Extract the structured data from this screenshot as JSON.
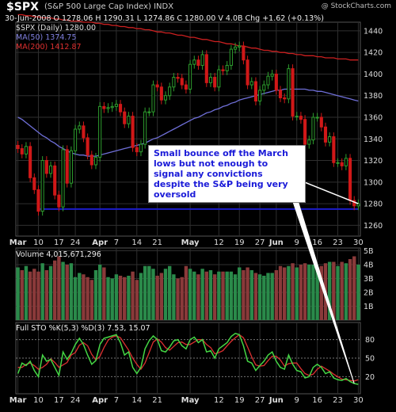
{
  "header": {
    "ticker": "$SPX",
    "subtitle": "(S&P 500 Large Cap Index)  INDX",
    "watermark": "@ StockCharts.com",
    "quote": "30-Jun-2008   O 1278.06  H 1290.31  L 1274.86  C 1280.00  V 4.0B  Chg +1.62 (+0.13%)"
  },
  "legend": {
    "price_series": "$SPX (Daily) 1280.00",
    "ma50": "MA(50) 1374.75",
    "ma200": "MA(200) 1412.87",
    "volume": "Volume 4,015,671,296",
    "sto": "Full STO %K(5,3) %D(3) 7.53, 15.07"
  },
  "annotation": "Small bounce off the March lows but not enough to signal any convictions despite the S&P being very oversold",
  "colors": {
    "background": "#000000",
    "up": "#2e9e2e",
    "down": "#d01818",
    "ma50": "#6f6fd8",
    "ma200": "#cc2020",
    "support": "#1c1cc8",
    "vol_up": "#2a8a4a",
    "vol_down": "#8a3a3a",
    "sto_k": "#44d644",
    "sto_d": "#dd3030",
    "grid": "#2f2f2f"
  },
  "chart_data": {
    "type": "candlestick",
    "dates": [
      "Mar 3",
      "Mar 4",
      "Mar 5",
      "Mar 6",
      "Mar 7",
      "Mar 10",
      "Mar 11",
      "Mar 12",
      "Mar 13",
      "Mar 14",
      "Mar 17",
      "Mar 18",
      "Mar 19",
      "Mar 20",
      "Mar 24",
      "Mar 25",
      "Mar 26",
      "Mar 27",
      "Mar 28",
      "Mar 31",
      "Apr 1",
      "Apr 2",
      "Apr 3",
      "Apr 4",
      "Apr 7",
      "Apr 8",
      "Apr 9",
      "Apr 10",
      "Apr 11",
      "Apr 14",
      "Apr 15",
      "Apr 16",
      "Apr 17",
      "Apr 18",
      "Apr 21",
      "Apr 22",
      "Apr 23",
      "Apr 24",
      "Apr 25",
      "Apr 28",
      "Apr 29",
      "Apr 30",
      "May 1",
      "May 2",
      "May 5",
      "May 6",
      "May 7",
      "May 8",
      "May 9",
      "May 12",
      "May 13",
      "May 14",
      "May 15",
      "May 16",
      "May 19",
      "May 20",
      "May 21",
      "May 22",
      "May 23",
      "May 27",
      "May 28",
      "May 29",
      "May 30",
      "Jun 2",
      "Jun 3",
      "Jun 4",
      "Jun 5",
      "Jun 6",
      "Jun 9",
      "Jun 10",
      "Jun 11",
      "Jun 12",
      "Jun 13",
      "Jun 16",
      "Jun 17",
      "Jun 18",
      "Jun 19",
      "Jun 20",
      "Jun 23",
      "Jun 24",
      "Jun 25",
      "Jun 26",
      "Jun 27",
      "Jun 30"
    ],
    "close": [
      1331,
      1326,
      1333,
      1304,
      1293,
      1273,
      1320,
      1308,
      1315,
      1288,
      1277,
      1330,
      1299,
      1329,
      1349,
      1352,
      1341,
      1325,
      1316,
      1323,
      1370,
      1368,
      1369,
      1370,
      1372,
      1365,
      1354,
      1361,
      1332,
      1328,
      1335,
      1365,
      1365,
      1390,
      1388,
      1376,
      1380,
      1388,
      1397,
      1396,
      1390,
      1386,
      1409,
      1413,
      1408,
      1418,
      1392,
      1397,
      1388,
      1404,
      1403,
      1408,
      1423,
      1425,
      1426,
      1413,
      1390,
      1393,
      1375,
      1385,
      1390,
      1398,
      1400,
      1385,
      1378,
      1377,
      1405,
      1361,
      1361,
      1358,
      1335,
      1339,
      1360,
      1360,
      1351,
      1337,
      1342,
      1318,
      1318,
      1315,
      1322,
      1283,
      1278,
      1280
    ],
    "volume_billions": [
      3.8,
      3.6,
      3.9,
      3.5,
      3.7,
      3.5,
      4.1,
      3.6,
      3.9,
      4.3,
      4.6,
      4.2,
      4.0,
      4.1,
      3.1,
      3.4,
      3.3,
      3.1,
      2.9,
      3.6,
      4.0,
      3.8,
      3.1,
      3.0,
      3.3,
      3.2,
      3.1,
      3.2,
      3.5,
      2.9,
      3.4,
      3.9,
      3.9,
      3.7,
      3.2,
      3.4,
      3.7,
      3.9,
      3.3,
      3.0,
      3.1,
      3.9,
      3.7,
      3.5,
      3.3,
      3.7,
      3.5,
      3.6,
      3.3,
      3.5,
      3.5,
      3.5,
      3.5,
      3.3,
      3.8,
      3.6,
      3.8,
      3.6,
      3.4,
      3.3,
      3.2,
      3.4,
      3.4,
      3.6,
      3.9,
      3.8,
      3.9,
      4.1,
      3.8,
      4.0,
      4.1,
      4.0,
      4.0,
      3.8,
      3.9,
      4.1,
      4.2,
      4.2,
      3.9,
      4.2,
      4.1,
      4.4,
      4.6,
      4.0
    ],
    "ma50": [
      1360,
      1358,
      1355,
      1352,
      1349,
      1346,
      1343,
      1341,
      1338,
      1336,
      1333,
      1331,
      1329,
      1327,
      1326,
      1325,
      1325,
      1324,
      1324,
      1324,
      1325,
      1326,
      1327,
      1328,
      1329,
      1330,
      1331,
      1332,
      1333,
      1334,
      1335,
      1336,
      1338,
      1340,
      1341,
      1343,
      1345,
      1347,
      1349,
      1351,
      1353,
      1355,
      1357,
      1359,
      1360,
      1362,
      1364,
      1365,
      1367,
      1368,
      1370,
      1371,
      1373,
      1374,
      1376,
      1377,
      1378,
      1379,
      1380,
      1381,
      1382,
      1383,
      1384,
      1385,
      1385,
      1386,
      1386,
      1386,
      1386,
      1386,
      1386,
      1385,
      1385,
      1384,
      1384,
      1383,
      1382,
      1381,
      1380,
      1379,
      1378,
      1377,
      1376,
      1375
    ],
    "ma200": [
      1455,
      1455,
      1454,
      1454,
      1453,
      1453,
      1452,
      1452,
      1452,
      1451,
      1451,
      1450,
      1450,
      1449,
      1449,
      1449,
      1448,
      1448,
      1448,
      1447,
      1447,
      1446,
      1446,
      1445,
      1445,
      1444,
      1444,
      1443,
      1443,
      1442,
      1442,
      1441,
      1441,
      1440,
      1439,
      1439,
      1438,
      1438,
      1437,
      1436,
      1436,
      1435,
      1434,
      1434,
      1433,
      1432,
      1432,
      1431,
      1430,
      1430,
      1429,
      1428,
      1428,
      1427,
      1426,
      1426,
      1425,
      1424,
      1424,
      1423,
      1422,
      1422,
      1421,
      1421,
      1420,
      1420,
      1419,
      1419,
      1418,
      1418,
      1417,
      1417,
      1417,
      1416,
      1416,
      1415,
      1415,
      1415,
      1414,
      1414,
      1414,
      1413,
      1413,
      1413
    ],
    "sto_k": [
      25,
      42,
      38,
      45,
      30,
      20,
      55,
      45,
      48,
      35,
      22,
      60,
      48,
      58,
      72,
      82,
      72,
      55,
      40,
      46,
      72,
      82,
      84,
      86,
      88,
      75,
      55,
      60,
      35,
      25,
      35,
      65,
      78,
      86,
      80,
      62,
      60,
      68,
      78,
      80,
      70,
      65,
      80,
      84,
      75,
      80,
      60,
      62,
      50,
      65,
      70,
      75,
      85,
      90,
      88,
      70,
      45,
      42,
      30,
      38,
      45,
      55,
      60,
      45,
      35,
      32,
      55,
      40,
      30,
      28,
      18,
      20,
      35,
      40,
      35,
      25,
      28,
      18,
      15,
      14,
      17,
      12,
      9,
      7.53
    ],
    "sto_d": [
      35,
      35,
      40,
      42,
      38,
      32,
      35,
      40,
      49,
      43,
      35,
      39,
      43,
      55,
      59,
      71,
      75,
      70,
      56,
      47,
      53,
      67,
      79,
      84,
      86,
      83,
      73,
      63,
      50,
      40,
      32,
      42,
      59,
      76,
      81,
      76,
      67,
      63,
      69,
      75,
      76,
      72,
      72,
      76,
      80,
      80,
      72,
      67,
      57,
      59,
      62,
      70,
      77,
      83,
      88,
      83,
      68,
      52,
      39,
      37,
      38,
      46,
      53,
      53,
      47,
      37,
      41,
      42,
      42,
      33,
      25,
      22,
      24,
      32,
      37,
      33,
      29,
      24,
      20,
      16,
      15,
      14,
      13,
      15.07
    ],
    "y_ticks": [
      1260,
      1280,
      1300,
      1320,
      1340,
      1360,
      1380,
      1400,
      1420,
      1440
    ],
    "ylim": [
      1250,
      1448
    ],
    "x_ticks": [
      {
        "label": "Mar",
        "i": 0
      },
      {
        "label": "10",
        "i": 5
      },
      {
        "label": "17",
        "i": 10
      },
      {
        "label": "24",
        "i": 14
      },
      {
        "label": "Apr",
        "i": 20
      },
      {
        "label": "7",
        "i": 24
      },
      {
        "label": "14",
        "i": 29
      },
      {
        "label": "21",
        "i": 34
      },
      {
        "label": "May",
        "i": 42
      },
      {
        "label": "12",
        "i": 49
      },
      {
        "label": "19",
        "i": 54
      },
      {
        "label": "27",
        "i": 59
      },
      {
        "label": "Jun",
        "i": 63
      },
      {
        "label": "9",
        "i": 68
      },
      {
        "label": "16",
        "i": 73
      },
      {
        "label": "23",
        "i": 78
      },
      {
        "label": "30",
        "i": 83
      }
    ],
    "support_level": 1275,
    "volume_ticks": [
      "1B",
      "2B",
      "3B",
      "4B",
      "5B"
    ],
    "volume_tick_values": [
      1,
      2,
      3,
      4,
      5
    ],
    "volume_ylim": [
      0,
      5.2
    ],
    "sto_ticks": [
      "20",
      "50",
      "80"
    ],
    "sto_tick_values": [
      20,
      50,
      80
    ]
  }
}
